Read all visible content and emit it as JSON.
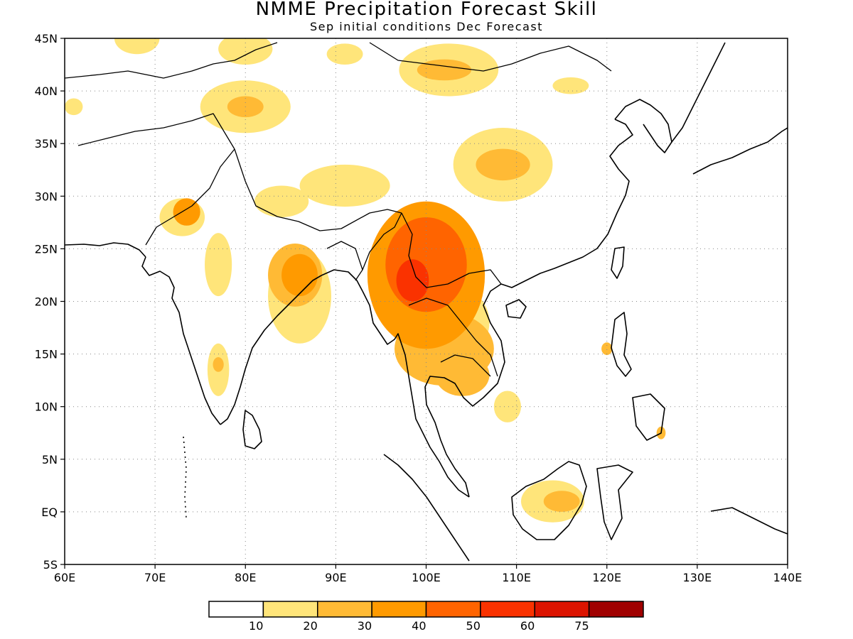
{
  "figure": {
    "title": "NMME Precipitation Forecast Skill",
    "subtitle": "Sep initial conditions  Dec Forecast"
  },
  "chart_data": {
    "type": "heatmap",
    "title": "NMME Precipitation Forecast Skill",
    "subtitle": "Sep initial conditions  Dec Forecast",
    "x_range": [
      60,
      140
    ],
    "y_range": [
      -5,
      45
    ],
    "x_ticks": [
      {
        "value": 60,
        "label": "60E"
      },
      {
        "value": 70,
        "label": "70E"
      },
      {
        "value": 80,
        "label": "80E"
      },
      {
        "value": 90,
        "label": "90E"
      },
      {
        "value": 100,
        "label": "100E"
      },
      {
        "value": 110,
        "label": "110E"
      },
      {
        "value": 120,
        "label": "120E"
      },
      {
        "value": 130,
        "label": "130E"
      },
      {
        "value": 140,
        "label": "140E"
      }
    ],
    "y_ticks": [
      {
        "value": -5,
        "label": "5S"
      },
      {
        "value": 0,
        "label": "EQ"
      },
      {
        "value": 5,
        "label": "5N"
      },
      {
        "value": 10,
        "label": "10N"
      },
      {
        "value": 15,
        "label": "15N"
      },
      {
        "value": 20,
        "label": "20N"
      },
      {
        "value": 25,
        "label": "25N"
      },
      {
        "value": 30,
        "label": "30N"
      },
      {
        "value": 35,
        "label": "35N"
      },
      {
        "value": 40,
        "label": "40N"
      },
      {
        "value": 45,
        "label": "45N"
      }
    ],
    "grid": true,
    "colorbar": {
      "levels": [
        10,
        20,
        30,
        40,
        50,
        60,
        75
      ],
      "labels": [
        "10",
        "20",
        "30",
        "40",
        "50",
        "60",
        "75"
      ],
      "colors": [
        "#ffffff",
        "#ffe57a",
        "#ffba35",
        "#ff9a00",
        "#ff6400",
        "#fa3200",
        "#dc1400",
        "#a00000"
      ]
    },
    "skill_regions": [
      {
        "lon": 100,
        "lat": 23.5,
        "rx": 4.5,
        "ry": 4.5,
        "value": 45
      },
      {
        "lon": 98.5,
        "lat": 22,
        "rx": 1.8,
        "ry": 2,
        "value": 55
      },
      {
        "lon": 100,
        "lat": 22.5,
        "rx": 6.5,
        "ry": 7,
        "value": 30
      },
      {
        "lon": 102,
        "lat": 15.5,
        "rx": 5.5,
        "ry": 3.5,
        "value": 25
      },
      {
        "lon": 104,
        "lat": 13,
        "rx": 3,
        "ry": 2,
        "value": 20
      },
      {
        "lon": 103,
        "lat": 18,
        "rx": 4,
        "ry": 3.5,
        "value": 15
      },
      {
        "lon": 86,
        "lat": 22.5,
        "rx": 2,
        "ry": 2,
        "value": 30
      },
      {
        "lon": 85.5,
        "lat": 22.5,
        "rx": 3,
        "ry": 3,
        "value": 20
      },
      {
        "lon": 86,
        "lat": 20.5,
        "rx": 3.5,
        "ry": 4.5,
        "value": 12
      },
      {
        "lon": 73.5,
        "lat": 28.5,
        "rx": 1.5,
        "ry": 1.3,
        "value": 30
      },
      {
        "lon": 73,
        "lat": 28,
        "rx": 2.5,
        "ry": 1.8,
        "value": 15
      },
      {
        "lon": 77,
        "lat": 23.5,
        "rx": 1.5,
        "ry": 3,
        "value": 12
      },
      {
        "lon": 77,
        "lat": 13.5,
        "rx": 1.2,
        "ry": 2.5,
        "value": 12
      },
      {
        "lon": 77,
        "lat": 14,
        "rx": 0.6,
        "ry": 0.7,
        "value": 25
      },
      {
        "lon": 108.5,
        "lat": 33,
        "rx": 5.5,
        "ry": 3.5,
        "value": 15
      },
      {
        "lon": 108.5,
        "lat": 33,
        "rx": 3,
        "ry": 1.5,
        "value": 25
      },
      {
        "lon": 102.5,
        "lat": 42,
        "rx": 5.5,
        "ry": 2.5,
        "value": 15
      },
      {
        "lon": 102,
        "lat": 42,
        "rx": 3,
        "ry": 1,
        "value": 25
      },
      {
        "lon": 80,
        "lat": 38.5,
        "rx": 5,
        "ry": 2.5,
        "value": 15
      },
      {
        "lon": 80,
        "lat": 38.5,
        "rx": 2,
        "ry": 1,
        "value": 22
      },
      {
        "lon": 91,
        "lat": 31,
        "rx": 5,
        "ry": 2,
        "value": 12
      },
      {
        "lon": 84,
        "lat": 29.5,
        "rx": 3,
        "ry": 1.5,
        "value": 12
      },
      {
        "lon": 114,
        "lat": 1,
        "rx": 3.5,
        "ry": 2,
        "value": 15
      },
      {
        "lon": 115,
        "lat": 1,
        "rx": 2,
        "ry": 1,
        "value": 22
      },
      {
        "lon": 68,
        "lat": 45,
        "rx": 2.5,
        "ry": 1.5,
        "value": 15
      },
      {
        "lon": 80,
        "lat": 44,
        "rx": 3,
        "ry": 1.5,
        "value": 15
      },
      {
        "lon": 91,
        "lat": 43.5,
        "rx": 2,
        "ry": 1,
        "value": 12
      },
      {
        "lon": 116,
        "lat": 40.5,
        "rx": 2,
        "ry": 0.8,
        "value": 12
      },
      {
        "lon": 61,
        "lat": 38.5,
        "rx": 1,
        "ry": 0.8,
        "value": 12
      },
      {
        "lon": 120,
        "lat": 15.5,
        "rx": 0.6,
        "ry": 0.6,
        "value": 25
      },
      {
        "lon": 126,
        "lat": 7.5,
        "rx": 0.5,
        "ry": 0.6,
        "value": 25
      },
      {
        "lon": 109,
        "lat": 10,
        "rx": 1.5,
        "ry": 1.5,
        "value": 15
      }
    ]
  }
}
